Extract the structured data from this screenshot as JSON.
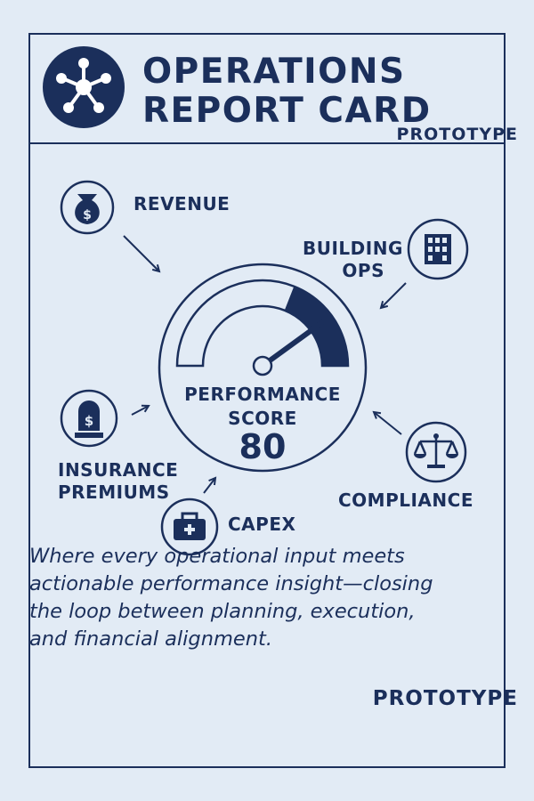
{
  "header": {
    "title_line1": "OPERATIONS",
    "title_line2": "REPORT CARD",
    "logo_icon": "network-hub-icon"
  },
  "badges": {
    "top": "PROTOTYPE",
    "bottom": "PROTOTYPE"
  },
  "gauge": {
    "label_line1": "PERFORMANCE",
    "label_line2": "SCORE",
    "score": "80",
    "score_value": 80
  },
  "inputs": [
    {
      "label": "REVENUE",
      "icon": "money-bag-icon"
    },
    {
      "label_line1": "BUILDING",
      "label_line2": "OPS",
      "icon": "building-icon"
    },
    {
      "label_line1": "INSURANCE",
      "label_line2": "PREMIUMS",
      "icon": "insurance-icon"
    },
    {
      "label": "CAPEX",
      "icon": "toolbox-icon"
    },
    {
      "label": "COMPLIANCE",
      "icon": "scales-icon"
    }
  ],
  "tagline": [
    "Where every operational input meets",
    "actionable performance insight—closing",
    "the loop between planning, execution,",
    "and financial alignment."
  ],
  "colors": {
    "navy": "#1b2f5b",
    "background": "#e2ebf5"
  }
}
